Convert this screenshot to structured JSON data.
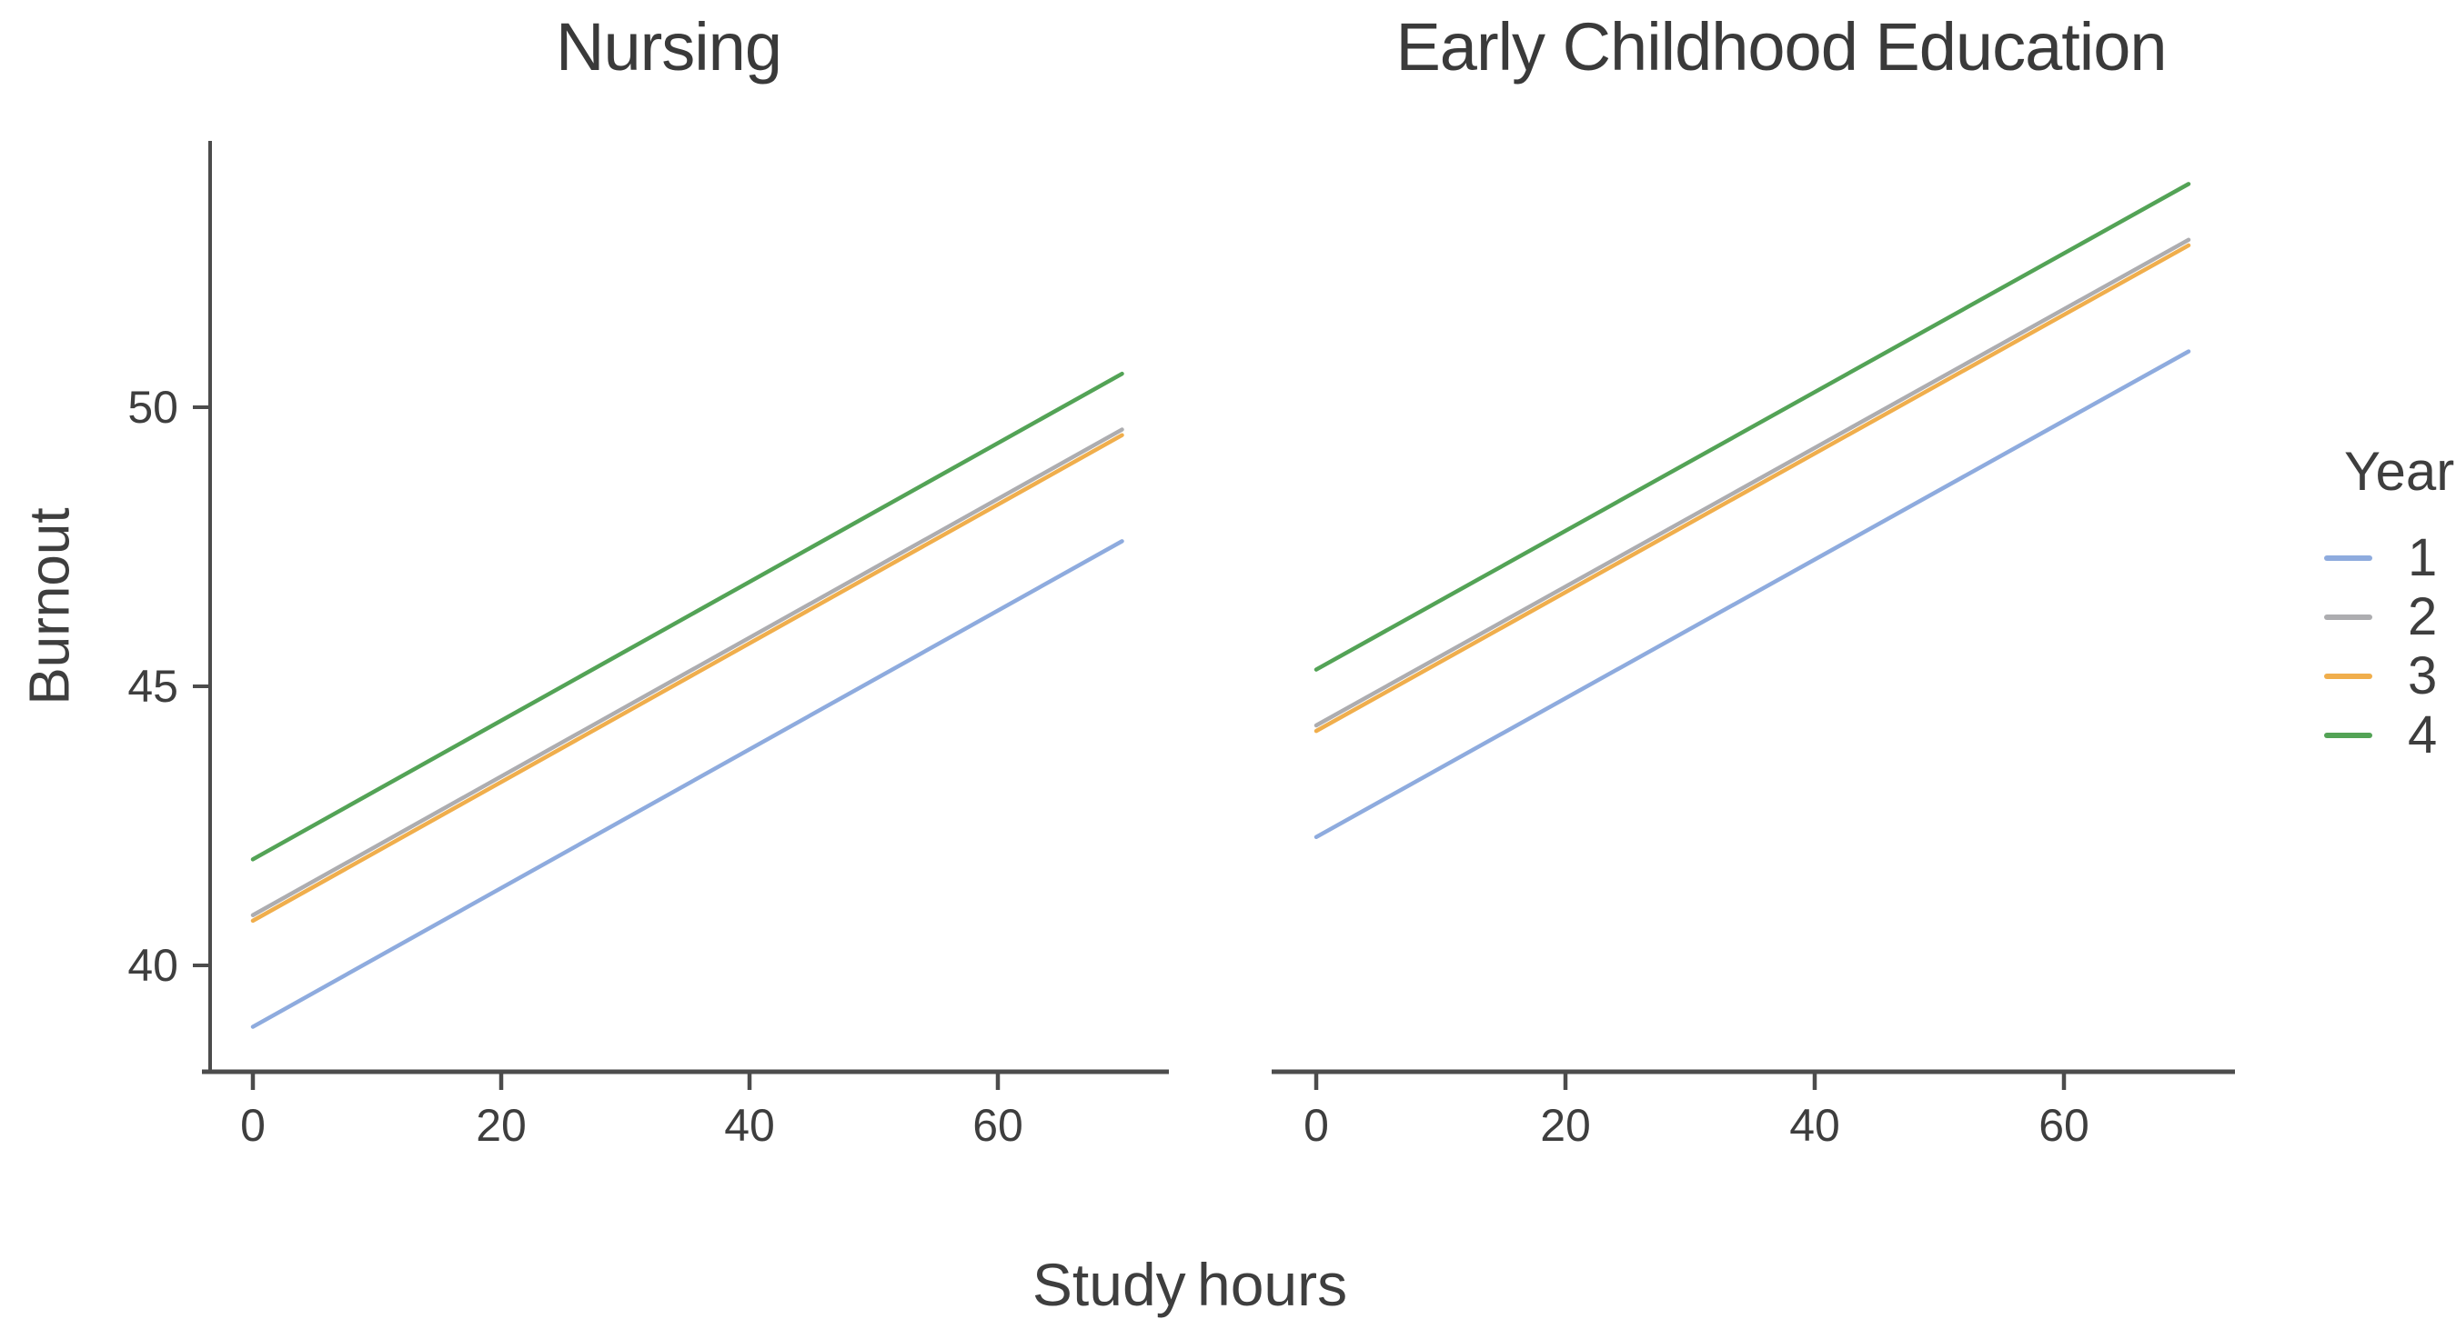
{
  "chart_data": {
    "type": "line",
    "facets": [
      {
        "title": "Nursing",
        "series": [
          {
            "year": "1",
            "x": [
              0,
              70
            ],
            "y": [
              38.9,
              47.6
            ]
          },
          {
            "year": "2",
            "x": [
              0,
              70
            ],
            "y": [
              40.9,
              49.6
            ]
          },
          {
            "year": "3",
            "x": [
              0,
              70
            ],
            "y": [
              40.8,
              49.5
            ]
          },
          {
            "year": "4",
            "x": [
              0,
              70
            ],
            "y": [
              41.9,
              50.6
            ]
          }
        ]
      },
      {
        "title": "Early Childhood Education",
        "series": [
          {
            "year": "1",
            "x": [
              0,
              70
            ],
            "y": [
              42.3,
              51.0
            ]
          },
          {
            "year": "2",
            "x": [
              0,
              70
            ],
            "y": [
              44.3,
              53.0
            ]
          },
          {
            "year": "3",
            "x": [
              0,
              70
            ],
            "y": [
              44.2,
              52.9
            ]
          },
          {
            "year": "4",
            "x": [
              0,
              70
            ],
            "y": [
              45.3,
              54.0
            ]
          }
        ]
      }
    ],
    "xlabel": "Study hours",
    "ylabel": "Burnout",
    "x_ticks": [
      0,
      20,
      40,
      60
    ],
    "y_ticks": [
      40,
      45,
      50
    ],
    "xlim": [
      -4,
      74
    ],
    "ylim": [
      38.1,
      54.8
    ],
    "grid": false,
    "legend": {
      "title": "Year",
      "position": "right",
      "entries": [
        {
          "label": "1",
          "color": "#8EABDE"
        },
        {
          "label": "2",
          "color": "#ADADB0"
        },
        {
          "label": "3",
          "color": "#F0AE4C"
        },
        {
          "label": "4",
          "color": "#53A356"
        }
      ]
    },
    "style": {
      "axis_color": "#4C4C4C",
      "text_color": "#3E3E3E",
      "background": "#FFFFFF"
    }
  }
}
